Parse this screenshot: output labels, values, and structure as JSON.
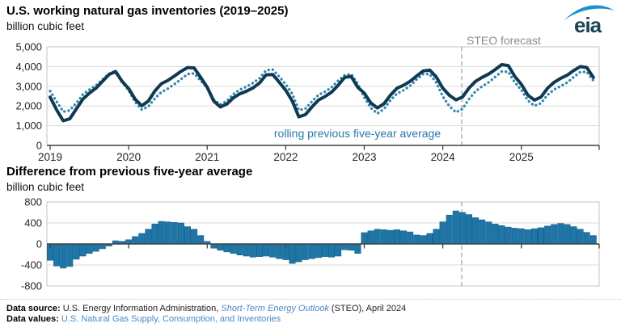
{
  "logo": {
    "text": "eia",
    "swoosh_color": "#1e8fd0",
    "text_color": "#1d4354"
  },
  "colors": {
    "actual_line": "#103a52",
    "average_dotted": "#2e87b2",
    "bars": "#1e76a8",
    "bar_edge": "#135d85",
    "forecast_dash": "#a8a8a8",
    "grid": "#d9d9d9",
    "box_border": "#c4c4c4",
    "axis": "#404040",
    "tick_text": "#252525",
    "legend_text": "#2878ab",
    "forecast_text": "#8c8c8c",
    "link": "#4a89c5"
  },
  "chart_data": [
    {
      "type": "line",
      "title": "U.S. working natural gas inventories (2019–2025)",
      "ylabel": "billion cubic feet",
      "ylim": [
        0,
        5000
      ],
      "y_ticks": [
        0,
        1000,
        2000,
        3000,
        4000,
        5000
      ],
      "x_start": "2019-01",
      "x_interval": "monthly",
      "x_year_ticks": [
        2019,
        2020,
        2021,
        2022,
        2023,
        2024,
        2025
      ],
      "grid": "horizontal",
      "forecast_label": "STEO forecast",
      "forecast_start": "2024-04",
      "series": [
        {
          "name": "working natural gas inventories",
          "style": "solid",
          "color": "#103a52",
          "values": [
            2450,
            1800,
            1250,
            1350,
            1850,
            2350,
            2650,
            2900,
            3250,
            3600,
            3750,
            3250,
            2880,
            2340,
            2010,
            2250,
            2760,
            3130,
            3300,
            3520,
            3760,
            3950,
            3930,
            3450,
            2950,
            2250,
            1950,
            2100,
            2420,
            2620,
            2750,
            2920,
            3170,
            3580,
            3600,
            3210,
            2800,
            2250,
            1450,
            1560,
            1950,
            2300,
            2480,
            2700,
            3050,
            3450,
            3500,
            2950,
            2650,
            2150,
            1900,
            2110,
            2550,
            2900,
            3050,
            3250,
            3520,
            3780,
            3820,
            3470,
            2900,
            2540,
            2310,
            2450,
            2910,
            3250,
            3450,
            3620,
            3850,
            4100,
            4050,
            3500,
            3100,
            2550,
            2300,
            2450,
            2900,
            3200,
            3400,
            3560,
            3800,
            4000,
            3950,
            3450
          ]
        },
        {
          "name": "rolling previous five-year average",
          "style": "dotted",
          "color": "#2e87b2",
          "values": [
            2760,
            2220,
            1710,
            1780,
            2140,
            2580,
            2830,
            3040,
            3340,
            3640,
            3690,
            3200,
            2800,
            2200,
            1810,
            1970,
            2380,
            2700,
            2880,
            3110,
            3360,
            3620,
            3650,
            3290,
            2900,
            2330,
            2070,
            2250,
            2600,
            2830,
            2980,
            3170,
            3410,
            3810,
            3850,
            3490,
            3100,
            2620,
            1790,
            1860,
            2230,
            2560,
            2720,
            2950,
            3280,
            3560,
            3620,
            3130,
            2435,
            1900,
            1620,
            1840,
            2290,
            2630,
            2800,
            3020,
            3350,
            3620,
            3620,
            3190,
            2480,
            1990,
            1680,
            1850,
            2350,
            2750,
            2990,
            3200,
            3470,
            3750,
            3730,
            3200,
            2810,
            2280,
            2010,
            2140,
            2560,
            2830,
            3010,
            3190,
            3470,
            3720,
            3730,
            3290
          ]
        }
      ]
    },
    {
      "type": "bar",
      "title": "Difference from previous five-year average",
      "ylabel": "billion cubic feet",
      "ylim": [
        -800,
        800
      ],
      "y_ticks": [
        -800,
        -400,
        0,
        400,
        800
      ],
      "x_start": "2019-01",
      "x_interval": "monthly",
      "grid": "horizontal",
      "forecast_start": "2024-04",
      "color": "#1e76a8",
      "values": [
        -310,
        -420,
        -460,
        -430,
        -290,
        -230,
        -180,
        -140,
        -90,
        -40,
        60,
        50,
        80,
        140,
        200,
        280,
        380,
        430,
        420,
        410,
        400,
        330,
        280,
        160,
        50,
        -80,
        -120,
        -150,
        -180,
        -210,
        -230,
        -250,
        -240,
        -230,
        -250,
        -280,
        -300,
        -370,
        -340,
        -300,
        -280,
        -260,
        -240,
        -250,
        -230,
        -110,
        -120,
        -180,
        215,
        250,
        280,
        270,
        260,
        270,
        250,
        230,
        170,
        160,
        200,
        280,
        420,
        550,
        630,
        600,
        560,
        500,
        460,
        420,
        380,
        350,
        320,
        300,
        290,
        270,
        290,
        310,
        340,
        370,
        390,
        370,
        330,
        280,
        220,
        160
      ]
    }
  ],
  "footer": {
    "source_prefix": "Data source: ",
    "source_text": "U.S. Energy Information Administration, ",
    "source_link": "Short-Term Energy Outlook",
    "source_suffix": " (STEO), April 2024",
    "values_prefix": "Data values: ",
    "values_link": "U.S. Natural Gas Supply, Consumption, and Inventories"
  }
}
